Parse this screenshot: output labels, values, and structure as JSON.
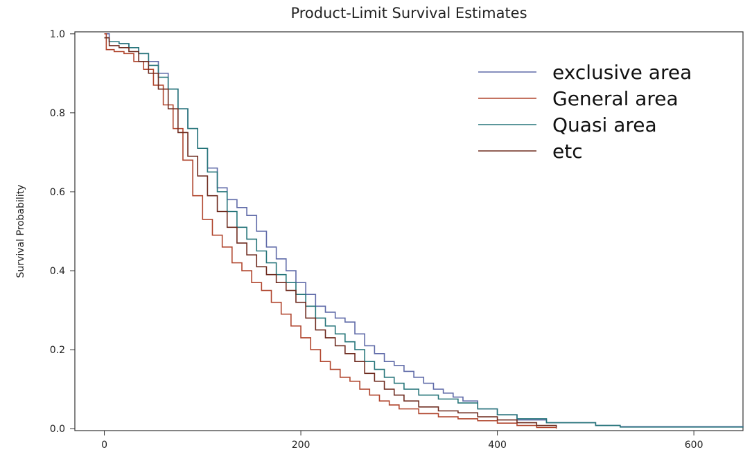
{
  "chart_data": {
    "type": "line",
    "title": "Product-Limit Survival Estimates",
    "xlabel": "",
    "ylabel": "Survival Probability",
    "xlim": [
      -30,
      650
    ],
    "ylim": [
      -0.005,
      1.005
    ],
    "xticks": [
      0,
      200,
      400,
      600
    ],
    "yticks": [
      0.0,
      0.2,
      0.4,
      0.6,
      0.8,
      1.0
    ],
    "ytick_labels": [
      "0.0",
      "0.2",
      "0.4",
      "0.6",
      "0.8",
      "1.0"
    ],
    "grid": false,
    "legend_position": "top-right",
    "series": [
      {
        "name": "exclusive area",
        "color": "#5f6aa8",
        "x": [
          0,
          5,
          15,
          25,
          35,
          45,
          55,
          65,
          75,
          85,
          95,
          105,
          115,
          125,
          135,
          145,
          155,
          165,
          175,
          185,
          195,
          205,
          215,
          225,
          235,
          245,
          255,
          265,
          275,
          285,
          295,
          305,
          315,
          325,
          335,
          345,
          355,
          365,
          380,
          400,
          420,
          450,
          500,
          525,
          650
        ],
        "y": [
          1.0,
          0.98,
          0.975,
          0.965,
          0.95,
          0.93,
          0.9,
          0.86,
          0.81,
          0.76,
          0.71,
          0.66,
          0.61,
          0.58,
          0.56,
          0.54,
          0.5,
          0.46,
          0.43,
          0.4,
          0.37,
          0.34,
          0.31,
          0.295,
          0.28,
          0.27,
          0.24,
          0.21,
          0.19,
          0.17,
          0.16,
          0.145,
          0.13,
          0.115,
          0.1,
          0.09,
          0.08,
          0.07,
          0.05,
          0.035,
          0.022,
          0.015,
          0.008,
          0.005,
          0.004
        ]
      },
      {
        "name": "General area",
        "color": "#b0452d",
        "x": [
          0,
          2,
          10,
          20,
          30,
          40,
          50,
          60,
          70,
          80,
          90,
          100,
          110,
          120,
          130,
          140,
          150,
          160,
          170,
          180,
          190,
          200,
          210,
          220,
          230,
          240,
          250,
          260,
          270,
          280,
          290,
          300,
          320,
          340,
          360,
          380,
          400,
          420,
          440,
          460
        ],
        "y": [
          1.0,
          0.96,
          0.955,
          0.95,
          0.93,
          0.91,
          0.87,
          0.82,
          0.76,
          0.68,
          0.59,
          0.53,
          0.49,
          0.46,
          0.42,
          0.4,
          0.37,
          0.35,
          0.32,
          0.29,
          0.26,
          0.23,
          0.2,
          0.17,
          0.15,
          0.13,
          0.12,
          0.1,
          0.085,
          0.07,
          0.06,
          0.05,
          0.038,
          0.03,
          0.025,
          0.02,
          0.014,
          0.008,
          0.003,
          0.0
        ]
      },
      {
        "name": "Quasi area",
        "color": "#26757a",
        "x": [
          0,
          5,
          15,
          25,
          35,
          45,
          55,
          65,
          75,
          85,
          95,
          105,
          115,
          125,
          135,
          145,
          155,
          165,
          175,
          185,
          195,
          205,
          215,
          225,
          235,
          245,
          255,
          265,
          275,
          285,
          295,
          305,
          320,
          340,
          360,
          380,
          400,
          420,
          450,
          500,
          525,
          650
        ],
        "y": [
          0.99,
          0.98,
          0.975,
          0.965,
          0.95,
          0.92,
          0.89,
          0.86,
          0.81,
          0.76,
          0.71,
          0.65,
          0.6,
          0.55,
          0.51,
          0.48,
          0.45,
          0.42,
          0.39,
          0.37,
          0.34,
          0.31,
          0.28,
          0.26,
          0.24,
          0.22,
          0.2,
          0.17,
          0.15,
          0.13,
          0.115,
          0.1,
          0.085,
          0.075,
          0.065,
          0.05,
          0.035,
          0.025,
          0.015,
          0.008,
          0.004,
          0.003
        ]
      },
      {
        "name": "etc",
        "color": "#6e2b1f",
        "x": [
          0,
          5,
          15,
          25,
          35,
          45,
          55,
          65,
          75,
          85,
          95,
          105,
          115,
          125,
          135,
          145,
          155,
          165,
          175,
          185,
          195,
          205,
          215,
          225,
          235,
          245,
          255,
          265,
          275,
          285,
          295,
          305,
          320,
          340,
          360,
          380,
          400,
          420,
          440,
          460
        ],
        "y": [
          0.99,
          0.97,
          0.965,
          0.955,
          0.93,
          0.9,
          0.86,
          0.81,
          0.75,
          0.69,
          0.64,
          0.59,
          0.55,
          0.51,
          0.47,
          0.44,
          0.41,
          0.39,
          0.37,
          0.35,
          0.32,
          0.28,
          0.25,
          0.23,
          0.21,
          0.19,
          0.17,
          0.14,
          0.12,
          0.1,
          0.085,
          0.07,
          0.055,
          0.045,
          0.04,
          0.03,
          0.022,
          0.015,
          0.008,
          0.003
        ]
      }
    ]
  }
}
